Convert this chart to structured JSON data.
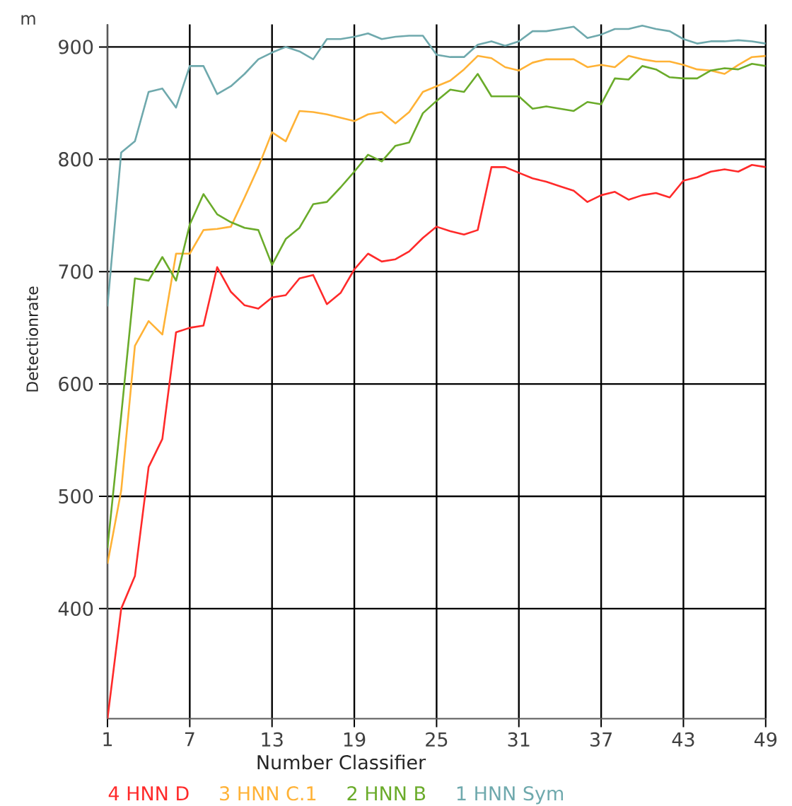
{
  "chart_data": {
    "type": "line",
    "xlabel": "Number Classifier",
    "ylabel": "Detectionrate",
    "annotations": [
      "m"
    ],
    "x": [
      1,
      2,
      3,
      4,
      5,
      6,
      7,
      8,
      9,
      10,
      11,
      12,
      13,
      14,
      15,
      16,
      17,
      18,
      19,
      20,
      21,
      22,
      23,
      24,
      25,
      26,
      27,
      28,
      29,
      30,
      31,
      32,
      33,
      34,
      35,
      36,
      37,
      38,
      39,
      40,
      41,
      42,
      43,
      44,
      45,
      46,
      47,
      48,
      49
    ],
    "xlim": [
      1,
      49
    ],
    "xticks": [
      1,
      7,
      13,
      19,
      25,
      31,
      37,
      43,
      49
    ],
    "ylim": [
      302,
      920
    ],
    "yticks": [
      400,
      500,
      600,
      700,
      800,
      900
    ],
    "grid": true,
    "legend": "bottom",
    "series": [
      {
        "name": "4 HNN D",
        "color": "#ff2a2a",
        "values": [
          302,
          400,
          429,
          526,
          551,
          646,
          650,
          652,
          704,
          682,
          670,
          667,
          677,
          679,
          694,
          697,
          671,
          681,
          702,
          716,
          709,
          711,
          718,
          730,
          740,
          736,
          733,
          737,
          793,
          793,
          788,
          783,
          780,
          776,
          772,
          762,
          768,
          771,
          764,
          768,
          770,
          766,
          781,
          784,
          789,
          791,
          789,
          795,
          793
        ]
      },
      {
        "name": "3 HNN C.1",
        "color": "#ffb236",
        "values": [
          440,
          505,
          634,
          656,
          644,
          716,
          716,
          737,
          738,
          740,
          766,
          793,
          824,
          816,
          843,
          842,
          840,
          837,
          834,
          840,
          842,
          832,
          842,
          860,
          865,
          870,
          880,
          892,
          890,
          882,
          879,
          886,
          889,
          889,
          889,
          882,
          884,
          882,
          892,
          889,
          887,
          887,
          884,
          880,
          879,
          876,
          884,
          891,
          892
        ]
      },
      {
        "name": "2 HNN B",
        "color": "#6aab2a",
        "values": [
          454,
          572,
          694,
          692,
          713,
          692,
          742,
          769,
          751,
          744,
          739,
          737,
          706,
          729,
          739,
          760,
          762,
          775,
          789,
          804,
          798,
          812,
          815,
          841,
          852,
          862,
          860,
          876,
          856,
          856,
          856,
          845,
          847,
          845,
          843,
          851,
          849,
          872,
          871,
          883,
          880,
          873,
          872,
          872,
          879,
          881,
          880,
          885,
          883
        ]
      },
      {
        "name": "1 HNN Sym",
        "color": "#6fa9ad",
        "values": [
          669,
          806,
          816,
          860,
          863,
          846,
          883,
          883,
          858,
          865,
          876,
          889,
          895,
          900,
          896,
          889,
          907,
          907,
          909,
          912,
          907,
          909,
          910,
          910,
          893,
          891,
          891,
          902,
          905,
          901,
          905,
          914,
          914,
          916,
          918,
          908,
          911,
          916,
          916,
          919,
          916,
          914,
          907,
          903,
          905,
          905,
          906,
          905,
          903
        ]
      }
    ]
  }
}
